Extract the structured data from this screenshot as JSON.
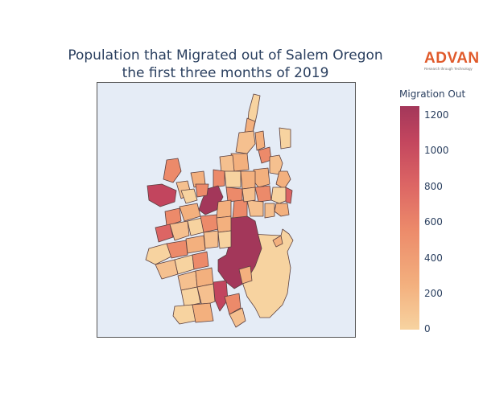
{
  "title_line1": "Population that Migrated out of Salem Oregon",
  "title_line2": "the first three months of 2019",
  "logo": {
    "brand": "ADVAN",
    "tagline": "Research through Technology",
    "color": "#e05a2b"
  },
  "legend": {
    "title": "Migration Out",
    "ticks": [
      "1200",
      "1000",
      "800",
      "600",
      "400",
      "200",
      "0"
    ],
    "range": [
      0,
      1270
    ],
    "colorscale": [
      "#f7d3a0",
      "#f3b07e",
      "#ec8a6a",
      "#dc6564",
      "#c2455e",
      "#a3375a"
    ]
  },
  "map": {
    "background": "#e5ecf6",
    "border_color": "#5a3f3f"
  }
}
